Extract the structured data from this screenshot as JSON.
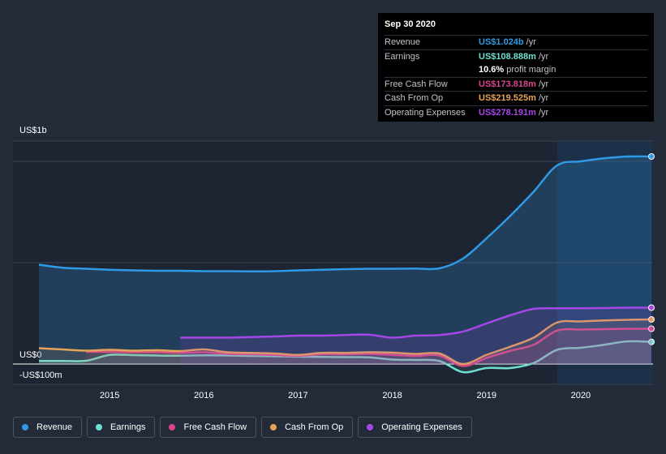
{
  "tooltip": {
    "date": "Sep 30 2020",
    "rows": [
      {
        "label": "Revenue",
        "value": "US$1.024b",
        "unit": "/yr",
        "color": "#2f9ae6"
      },
      {
        "label": "Earnings",
        "value": "US$108.888m",
        "unit": "/yr",
        "color": "#6fe0cf"
      },
      {
        "label": "",
        "value": "10.6%",
        "unit": "profit margin",
        "color": "#ffffff"
      },
      {
        "label": "Free Cash Flow",
        "value": "US$173.818m",
        "unit": "/yr",
        "color": "#d5478a"
      },
      {
        "label": "Cash From Op",
        "value": "US$219.525m",
        "unit": "/yr",
        "color": "#e6a45a"
      },
      {
        "label": "Operating Expenses",
        "value": "US$278.191m",
        "unit": "/yr",
        "color": "#a447e6"
      }
    ]
  },
  "legend": [
    {
      "label": "Revenue",
      "color": "#2f9ae6"
    },
    {
      "label": "Earnings",
      "color": "#6fe0cf"
    },
    {
      "label": "Free Cash Flow",
      "color": "#d5478a"
    },
    {
      "label": "Cash From Op",
      "color": "#e6a45a"
    },
    {
      "label": "Operating Expenses",
      "color": "#a447e6"
    }
  ],
  "chart_data": {
    "type": "area",
    "y_tick_labels": [
      {
        "value": 1000,
        "label": "US$1b"
      },
      {
        "value": 0,
        "label": "US$0"
      },
      {
        "value": -100,
        "label": "-US$100m"
      }
    ],
    "ylim": [
      -100,
      1100
    ],
    "xlim": [
      2014.25,
      2020.75
    ],
    "x_ticks": [
      2015,
      2016,
      2017,
      2018,
      2019,
      2020
    ],
    "x_tick_labels": [
      "2015",
      "2016",
      "2017",
      "2018",
      "2019",
      "2020"
    ],
    "forecast_shade_start": 2019.75,
    "grid": true,
    "series": [
      {
        "name": "Revenue",
        "color": "#2f9ae6",
        "points": [
          [
            2014.25,
            490
          ],
          [
            2014.5,
            475
          ],
          [
            2014.75,
            470
          ],
          [
            2015.0,
            465
          ],
          [
            2015.25,
            462
          ],
          [
            2015.5,
            460
          ],
          [
            2015.75,
            460
          ],
          [
            2016.0,
            458
          ],
          [
            2016.25,
            458
          ],
          [
            2016.5,
            457
          ],
          [
            2016.75,
            458
          ],
          [
            2017.0,
            462
          ],
          [
            2017.25,
            465
          ],
          [
            2017.5,
            468
          ],
          [
            2017.75,
            470
          ],
          [
            2018.0,
            470
          ],
          [
            2018.25,
            471
          ],
          [
            2018.5,
            472
          ],
          [
            2018.75,
            520
          ],
          [
            2019.0,
            620
          ],
          [
            2019.25,
            730
          ],
          [
            2019.5,
            850
          ],
          [
            2019.75,
            980
          ],
          [
            2020.0,
            1000
          ],
          [
            2020.25,
            1015
          ],
          [
            2020.5,
            1024
          ],
          [
            2020.75,
            1024
          ]
        ]
      },
      {
        "name": "Earnings",
        "color": "#6fe0cf",
        "points": [
          [
            2014.25,
            15
          ],
          [
            2014.5,
            15
          ],
          [
            2014.75,
            16
          ],
          [
            2015.0,
            45
          ],
          [
            2015.25,
            44
          ],
          [
            2015.5,
            42
          ],
          [
            2015.75,
            41
          ],
          [
            2016.0,
            43
          ],
          [
            2016.25,
            42
          ],
          [
            2016.5,
            40
          ],
          [
            2016.75,
            38
          ],
          [
            2017.0,
            36
          ],
          [
            2017.25,
            35
          ],
          [
            2017.5,
            34
          ],
          [
            2017.75,
            33
          ],
          [
            2018.0,
            22
          ],
          [
            2018.25,
            20
          ],
          [
            2018.5,
            15
          ],
          [
            2018.75,
            -40
          ],
          [
            2019.0,
            -20
          ],
          [
            2019.25,
            -20
          ],
          [
            2019.5,
            5
          ],
          [
            2019.75,
            70
          ],
          [
            2020.0,
            80
          ],
          [
            2020.25,
            95
          ],
          [
            2020.5,
            112
          ],
          [
            2020.75,
            109
          ]
        ]
      },
      {
        "name": "Free Cash Flow",
        "color": "#d5478a",
        "points": [
          [
            2014.75,
            60
          ],
          [
            2015.0,
            60
          ],
          [
            2015.25,
            58
          ],
          [
            2015.5,
            58
          ],
          [
            2015.75,
            55
          ],
          [
            2016.0,
            58
          ],
          [
            2016.25,
            50
          ],
          [
            2016.5,
            48
          ],
          [
            2016.75,
            45
          ],
          [
            2017.0,
            40
          ],
          [
            2017.25,
            48
          ],
          [
            2017.5,
            48
          ],
          [
            2017.75,
            50
          ],
          [
            2018.0,
            45
          ],
          [
            2018.25,
            40
          ],
          [
            2018.5,
            42
          ],
          [
            2018.75,
            -10
          ],
          [
            2019.0,
            30
          ],
          [
            2019.25,
            65
          ],
          [
            2019.5,
            95
          ],
          [
            2019.75,
            165
          ],
          [
            2020.0,
            170
          ],
          [
            2020.25,
            172
          ],
          [
            2020.5,
            174
          ],
          [
            2020.75,
            174
          ]
        ]
      },
      {
        "name": "Cash From Op",
        "color": "#e6a45a",
        "points": [
          [
            2014.25,
            78
          ],
          [
            2014.5,
            72
          ],
          [
            2014.75,
            66
          ],
          [
            2015.0,
            70
          ],
          [
            2015.25,
            66
          ],
          [
            2015.5,
            68
          ],
          [
            2015.75,
            64
          ],
          [
            2016.0,
            72
          ],
          [
            2016.25,
            58
          ],
          [
            2016.5,
            55
          ],
          [
            2016.75,
            52
          ],
          [
            2017.0,
            45
          ],
          [
            2017.25,
            55
          ],
          [
            2017.5,
            55
          ],
          [
            2017.75,
            58
          ],
          [
            2018.0,
            56
          ],
          [
            2018.25,
            50
          ],
          [
            2018.5,
            52
          ],
          [
            2018.75,
            0
          ],
          [
            2019.0,
            45
          ],
          [
            2019.25,
            85
          ],
          [
            2019.5,
            130
          ],
          [
            2019.75,
            205
          ],
          [
            2020.0,
            210
          ],
          [
            2020.25,
            215
          ],
          [
            2020.5,
            218
          ],
          [
            2020.75,
            220
          ]
        ]
      },
      {
        "name": "Operating Expenses",
        "color": "#a447e6",
        "points": [
          [
            2015.75,
            130
          ],
          [
            2016.0,
            130
          ],
          [
            2016.25,
            130
          ],
          [
            2016.5,
            133
          ],
          [
            2016.75,
            136
          ],
          [
            2017.0,
            140
          ],
          [
            2017.25,
            140
          ],
          [
            2017.5,
            143
          ],
          [
            2017.75,
            145
          ],
          [
            2018.0,
            130
          ],
          [
            2018.25,
            140
          ],
          [
            2018.5,
            143
          ],
          [
            2018.75,
            160
          ],
          [
            2019.0,
            200
          ],
          [
            2019.25,
            240
          ],
          [
            2019.5,
            272
          ],
          [
            2019.75,
            275
          ],
          [
            2020.0,
            275
          ],
          [
            2020.25,
            276
          ],
          [
            2020.5,
            278
          ],
          [
            2020.75,
            278
          ]
        ]
      }
    ]
  }
}
